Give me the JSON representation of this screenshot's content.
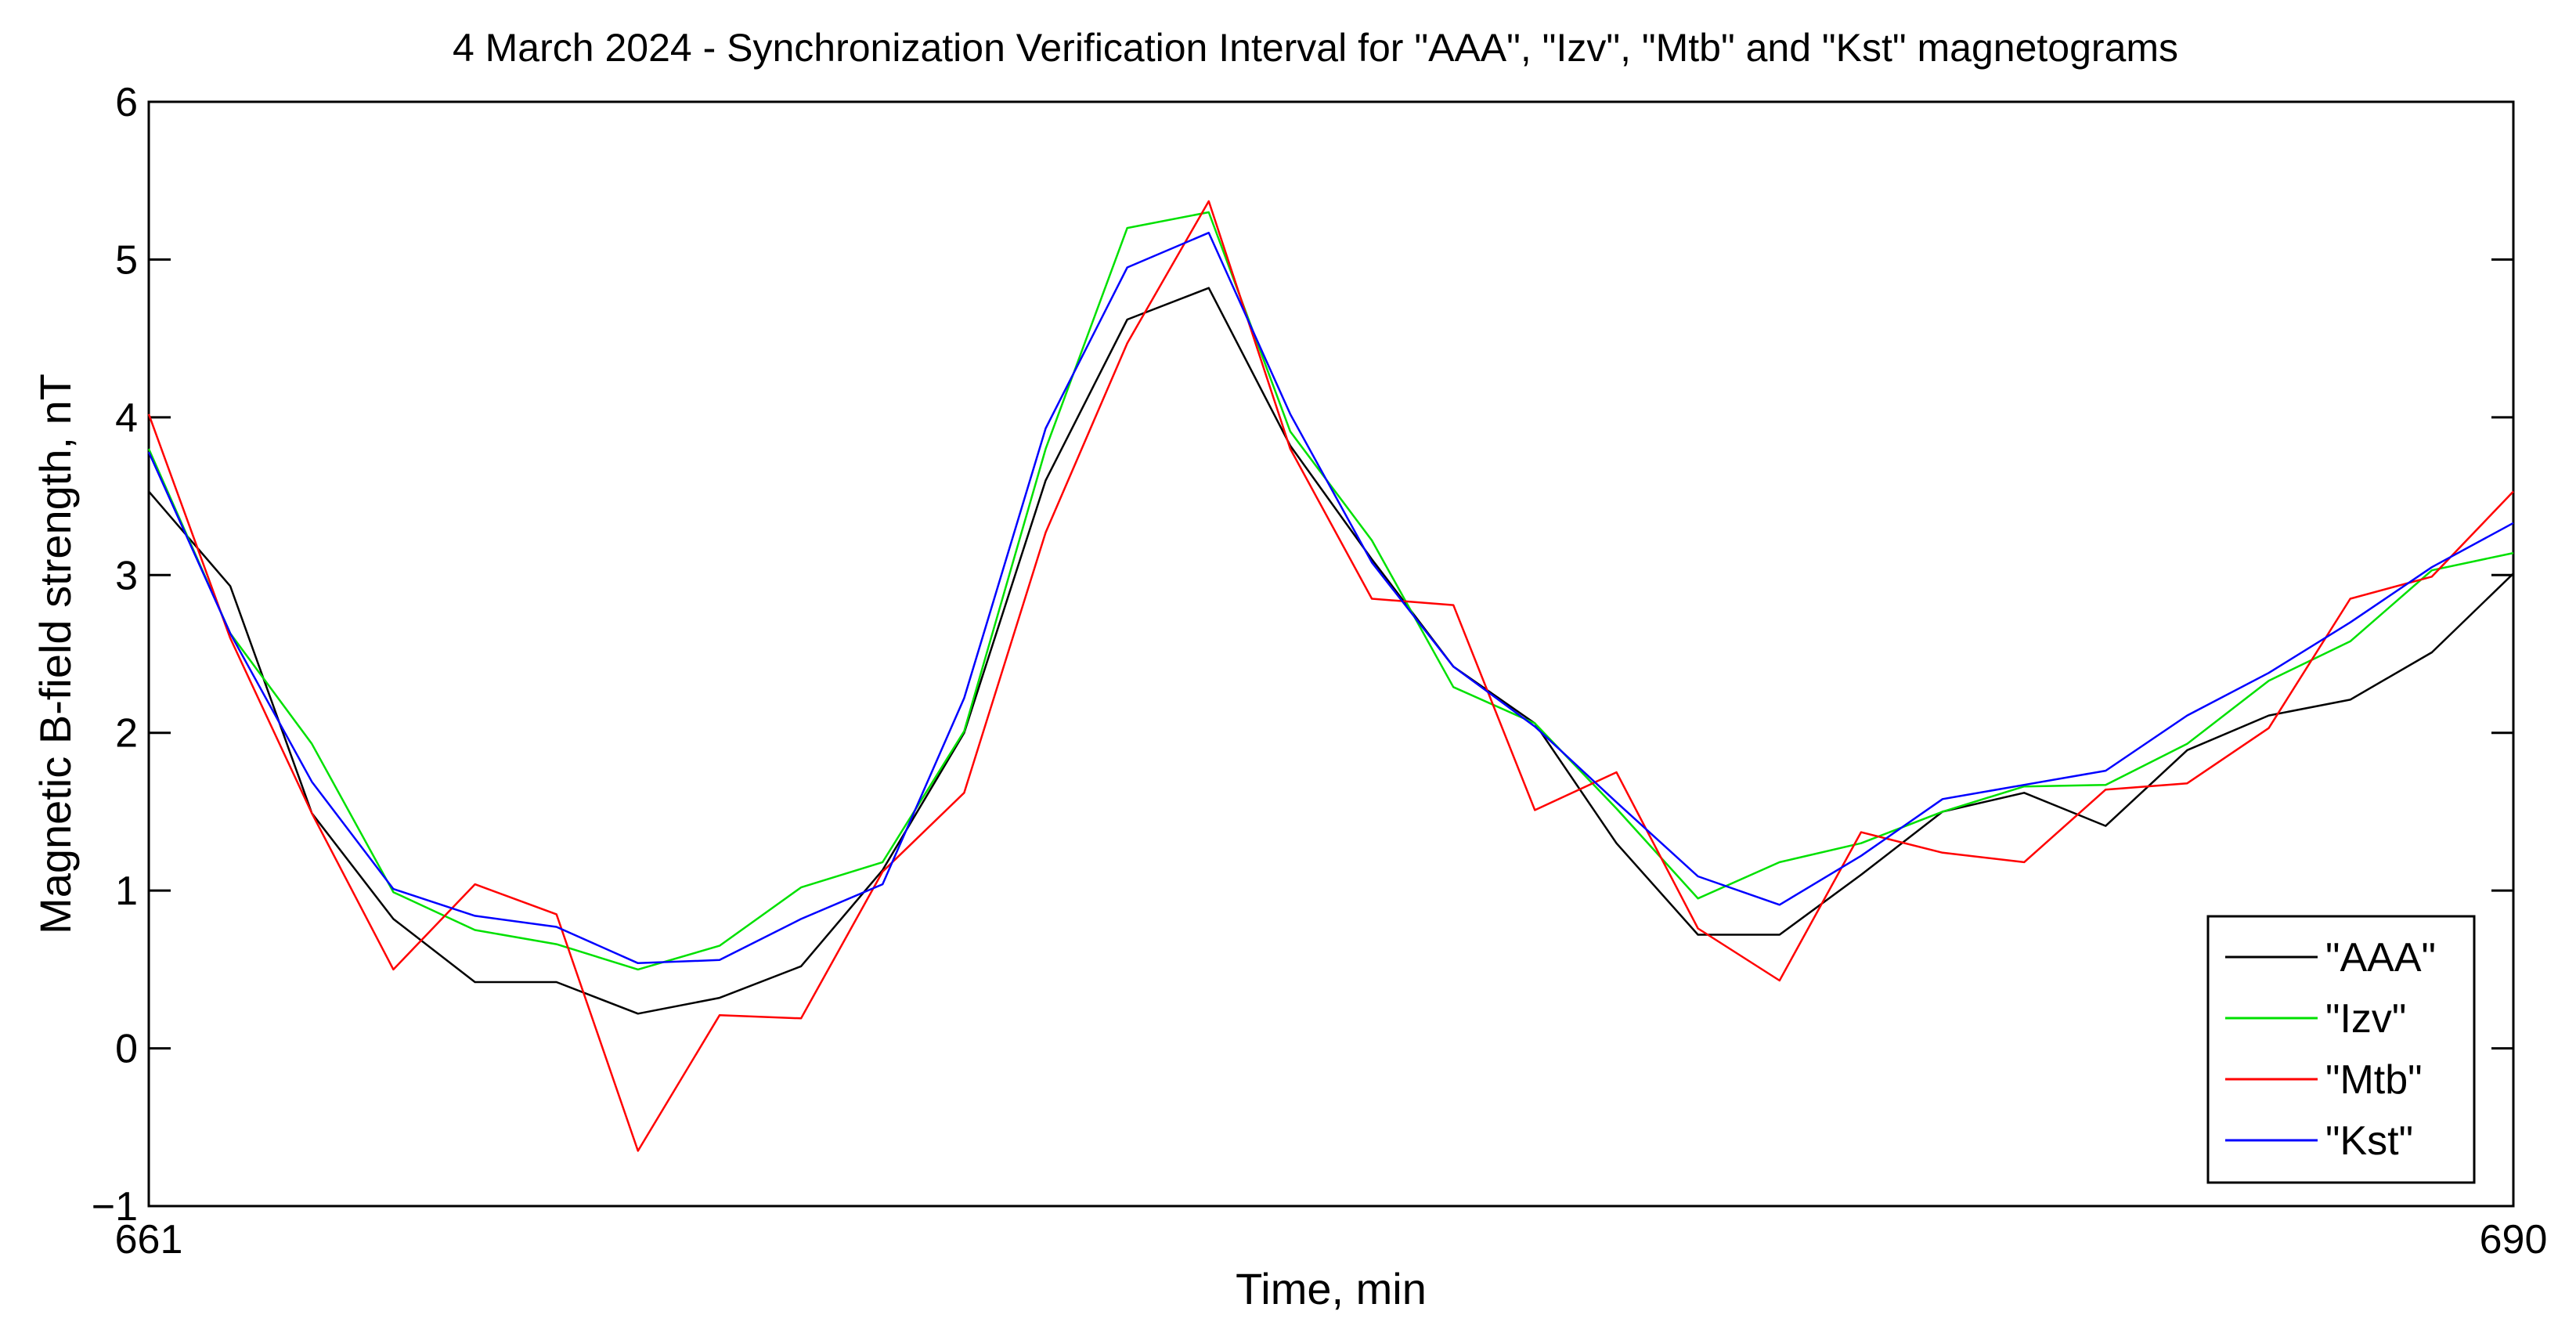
{
  "chart_data": {
    "type": "line",
    "title": "4 March 2024 - Synchronization Verification Interval for \"AAA\", \"Izv\", \"Mtb\" and \"Kst\" magnetograms",
    "xlabel": "Time, min",
    "ylabel": "Magnetic B-field strength, nT",
    "xlim": [
      661,
      690
    ],
    "ylim": [
      -1,
      6
    ],
    "xticks": [
      "661",
      "690"
    ],
    "yticks": [
      "−1",
      "0",
      "1",
      "2",
      "3",
      "4",
      "5",
      "6"
    ],
    "grid": false,
    "legend_position": "bottom-right",
    "x": [
      661,
      662,
      663,
      664,
      665,
      666,
      667,
      668,
      669,
      670,
      671,
      672,
      673,
      674,
      675,
      676,
      677,
      678,
      679,
      680,
      681,
      682,
      683,
      684,
      685,
      686,
      687,
      688,
      689,
      690
    ],
    "series": [
      {
        "name": "\"AAA\"",
        "color": "#000000",
        "values": [
          3.53,
          2.93,
          1.49,
          0.82,
          0.42,
          0.42,
          0.22,
          0.32,
          0.52,
          1.13,
          2.0,
          3.6,
          4.62,
          4.82,
          3.82,
          3.1,
          2.42,
          2.06,
          1.3,
          0.72,
          0.72,
          1.1,
          1.5,
          1.62,
          1.41,
          1.89,
          2.11,
          2.21,
          2.51,
          3.01
        ]
      },
      {
        "name": "\"Izv\"",
        "color": "#00e000",
        "values": [
          3.8,
          2.63,
          1.93,
          0.99,
          0.75,
          0.66,
          0.5,
          0.65,
          1.02,
          1.18,
          2.01,
          3.8,
          5.2,
          5.3,
          3.91,
          3.22,
          2.29,
          2.06,
          1.52,
          0.95,
          1.18,
          1.3,
          1.5,
          1.66,
          1.67,
          1.93,
          2.33,
          2.58,
          3.03,
          3.14
        ]
      },
      {
        "name": "\"Mtb\"",
        "color": "#ff0000",
        "values": [
          4.02,
          2.6,
          1.49,
          0.5,
          1.04,
          0.85,
          -0.65,
          0.21,
          0.19,
          1.12,
          1.62,
          3.27,
          4.47,
          5.37,
          3.8,
          2.85,
          2.81,
          1.51,
          1.75,
          0.76,
          0.43,
          1.37,
          1.24,
          1.18,
          1.64,
          1.68,
          2.03,
          2.85,
          2.99,
          3.53
        ]
      },
      {
        "name": "\"Kst\"",
        "color": "#0000ff",
        "values": [
          3.78,
          2.63,
          1.69,
          1.01,
          0.84,
          0.77,
          0.54,
          0.56,
          0.82,
          1.04,
          2.22,
          3.93,
          4.95,
          5.17,
          4.02,
          3.08,
          2.42,
          2.04,
          1.56,
          1.09,
          0.91,
          1.22,
          1.58,
          1.67,
          1.76,
          2.11,
          2.38,
          2.7,
          3.05,
          3.33
        ]
      }
    ]
  }
}
